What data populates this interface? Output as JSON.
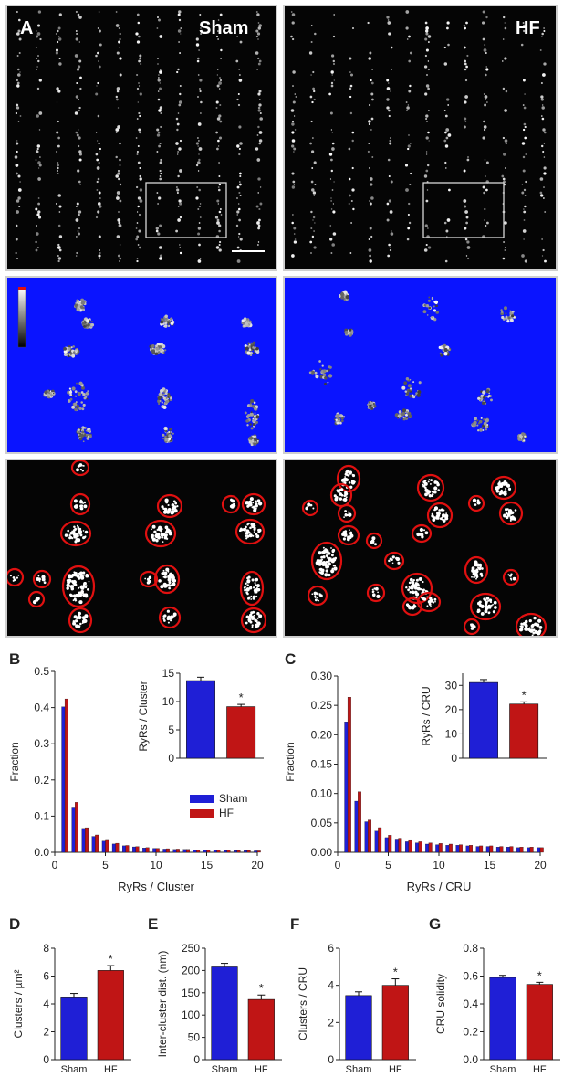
{
  "figure": {
    "panel_labels": [
      "A",
      "B",
      "C",
      "D",
      "E",
      "F",
      "G"
    ],
    "condition_labels": {
      "sham": "Sham",
      "hf": "HF"
    }
  },
  "colors": {
    "sham": "#1f1fd6",
    "hf": "#c01515",
    "microscopy_bg": "#050505",
    "map_bg": "#0a14ff",
    "outline": "#e01010"
  },
  "chart_data": [
    {
      "id": "B",
      "type": "bar",
      "xlabel": "RyRs / Cluster",
      "ylabel": "Fraction",
      "xlim": [
        0,
        20
      ],
      "ylim": [
        0,
        0.5
      ],
      "xticks": [
        0,
        5,
        10,
        15,
        20
      ],
      "yticks": [
        0.0,
        0.1,
        0.2,
        0.3,
        0.4,
        0.5
      ],
      "ytick_labels": [
        "0.0",
        "0.1",
        "0.2",
        "0.3",
        "0.4",
        "0.5"
      ],
      "x": [
        1,
        2,
        3,
        4,
        5,
        6,
        7,
        8,
        9,
        10,
        11,
        12,
        13,
        14,
        15,
        16,
        17,
        18,
        19,
        20
      ],
      "series": [
        {
          "name": "Sham",
          "values": [
            0.402,
            0.125,
            0.066,
            0.044,
            0.031,
            0.023,
            0.018,
            0.015,
            0.012,
            0.011,
            0.009,
            0.008,
            0.008,
            0.007,
            0.006,
            0.006,
            0.005,
            0.005,
            0.005,
            0.004
          ]
        },
        {
          "name": "HF",
          "values": [
            0.424,
            0.138,
            0.068,
            0.048,
            0.033,
            0.025,
            0.019,
            0.016,
            0.013,
            0.011,
            0.01,
            0.009,
            0.008,
            0.007,
            0.007,
            0.006,
            0.006,
            0.005,
            0.005,
            0.004
          ]
        }
      ],
      "legend": {
        "position": "right",
        "entries": [
          "Sham",
          "HF"
        ]
      },
      "inset": {
        "type": "bar",
        "categories": [
          "Sham",
          "HF"
        ],
        "values": [
          13.7,
          9.1
        ],
        "errors": [
          0.6,
          0.4
        ],
        "ylabel": "RyRs / Cluster",
        "ylim": [
          0,
          15
        ],
        "yticks": [
          0,
          5,
          10,
          15
        ],
        "significance": "*"
      }
    },
    {
      "id": "C",
      "type": "bar",
      "xlabel": "RyRs / CRU",
      "ylabel": "Fraction",
      "xlim": [
        0,
        20
      ],
      "ylim": [
        0,
        0.3
      ],
      "xticks": [
        0,
        5,
        10,
        15,
        20
      ],
      "yticks": [
        0.0,
        0.05,
        0.1,
        0.15,
        0.2,
        0.25,
        0.3
      ],
      "ytick_labels": [
        "0.00",
        "0.05",
        "0.10",
        "0.15",
        "0.20",
        "0.25",
        "0.30"
      ],
      "x": [
        1,
        2,
        3,
        4,
        5,
        6,
        7,
        8,
        9,
        10,
        11,
        12,
        13,
        14,
        15,
        16,
        17,
        18,
        19,
        20
      ],
      "series": [
        {
          "name": "Sham",
          "values": [
            0.222,
            0.087,
            0.052,
            0.036,
            0.025,
            0.021,
            0.018,
            0.016,
            0.014,
            0.013,
            0.012,
            0.012,
            0.011,
            0.01,
            0.01,
            0.009,
            0.009,
            0.008,
            0.008,
            0.008
          ]
        },
        {
          "name": "HF",
          "values": [
            0.264,
            0.103,
            0.055,
            0.042,
            0.029,
            0.024,
            0.02,
            0.018,
            0.016,
            0.015,
            0.014,
            0.013,
            0.012,
            0.011,
            0.011,
            0.01,
            0.01,
            0.009,
            0.009,
            0.008
          ]
        }
      ],
      "inset": {
        "type": "bar",
        "categories": [
          "Sham",
          "HF"
        ],
        "values": [
          31.2,
          22.3
        ],
        "errors": [
          1.2,
          0.9
        ],
        "ylabel": "RyRs / CRU",
        "ylim": [
          0,
          35
        ],
        "yticks": [
          0,
          10,
          20,
          30
        ],
        "significance": "*"
      }
    },
    {
      "id": "D",
      "type": "bar",
      "categories": [
        "Sham",
        "HF"
      ],
      "values": [
        4.5,
        6.4
      ],
      "errors": [
        0.25,
        0.35
      ],
      "ylabel": "Clusters / µm²",
      "ylim": [
        0,
        8
      ],
      "yticks": [
        0,
        2,
        4,
        6,
        8
      ],
      "significance": "*"
    },
    {
      "id": "E",
      "type": "bar",
      "categories": [
        "Sham",
        "HF"
      ],
      "values": [
        208,
        135
      ],
      "errors": [
        8,
        10
      ],
      "ylabel": "Inter-cluster dist. (nm)",
      "ylim": [
        0,
        250
      ],
      "yticks": [
        0,
        50,
        100,
        150,
        200,
        250
      ],
      "significance": "*"
    },
    {
      "id": "F",
      "type": "bar",
      "categories": [
        "Sham",
        "HF"
      ],
      "values": [
        3.45,
        4.0
      ],
      "errors": [
        0.2,
        0.35
      ],
      "ylabel": "Clusters / CRU",
      "ylim": [
        0,
        6
      ],
      "yticks": [
        0,
        2,
        4,
        6
      ],
      "significance": "*"
    },
    {
      "id": "G",
      "type": "bar",
      "categories": [
        "Sham",
        "HF"
      ],
      "values": [
        0.59,
        0.54
      ],
      "errors": [
        0.015,
        0.015
      ],
      "ylabel": "CRU solidity",
      "ylim": [
        0,
        0.8
      ],
      "yticks": [
        0.0,
        0.2,
        0.4,
        0.6,
        0.8
      ],
      "ytick_labels": [
        "0.0",
        "0.2",
        "0.4",
        "0.6",
        "0.8"
      ],
      "significance": "*"
    }
  ]
}
